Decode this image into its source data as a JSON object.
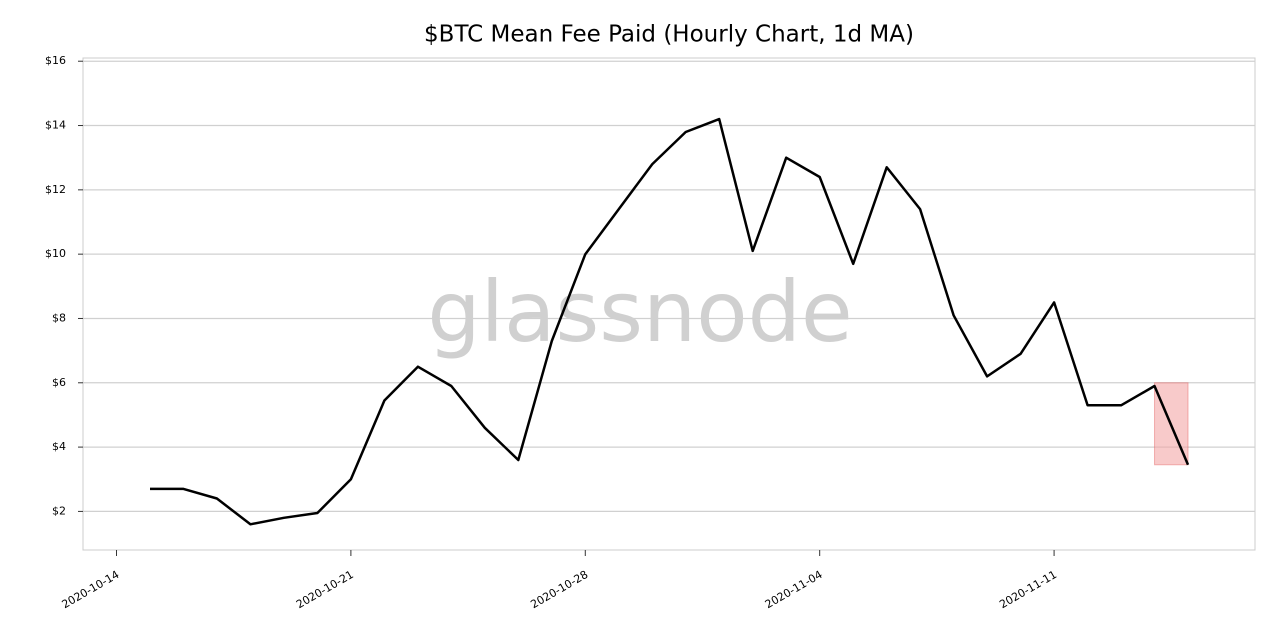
{
  "chart_data": {
    "type": "line",
    "title": "$BTC Mean Fee Paid (Hourly Chart, 1d MA)",
    "watermark": "glassnode",
    "x": [
      "2020-10-15",
      "2020-10-16",
      "2020-10-17",
      "2020-10-18",
      "2020-10-19",
      "2020-10-20",
      "2020-10-21",
      "2020-10-22",
      "2020-10-23",
      "2020-10-24",
      "2020-10-25",
      "2020-10-26",
      "2020-10-27",
      "2020-10-28",
      "2020-10-29",
      "2020-10-30",
      "2020-10-31",
      "2020-11-01",
      "2020-11-02",
      "2020-11-03",
      "2020-11-04",
      "2020-11-05",
      "2020-11-06",
      "2020-11-07",
      "2020-11-08",
      "2020-11-09",
      "2020-11-10",
      "2020-11-11",
      "2020-11-12",
      "2020-11-13",
      "2020-11-14",
      "2020-11-15"
    ],
    "series": [
      {
        "color": "#000000",
        "values": [
          2.7,
          2.7,
          2.4,
          1.6,
          1.8,
          1.95,
          3.0,
          5.45,
          6.5,
          5.9,
          4.6,
          3.6,
          7.3,
          10.0,
          11.4,
          12.8,
          13.8,
          14.2,
          10.1,
          13.0,
          12.4,
          9.7,
          12.7,
          11.4,
          8.1,
          6.2,
          6.9,
          8.5,
          5.3,
          5.3,
          5.9,
          3.45
        ]
      }
    ],
    "highlight": {
      "x": [
        "2020-11-14",
        "2020-11-15"
      ],
      "y": [
        3.45,
        6.0
      ],
      "color": "#f4a6a6",
      "edge": "#e05050"
    },
    "xlim": [
      "2020-10-13",
      "2020-11-17"
    ],
    "xticks": [
      "2020-10-14",
      "2020-10-21",
      "2020-10-28",
      "2020-11-04",
      "2020-11-11"
    ],
    "ylim": [
      0.8,
      16.1
    ],
    "yticks": [
      {
        "value": 2,
        "label": "$2"
      },
      {
        "value": 4,
        "label": "$4"
      },
      {
        "value": 6,
        "label": "$6"
      },
      {
        "value": 8,
        "label": "$8"
      },
      {
        "value": 10,
        "label": "$10"
      },
      {
        "value": 12,
        "label": "$12"
      },
      {
        "value": 14,
        "label": "$14"
      },
      {
        "value": 16,
        "label": "$16"
      }
    ],
    "grid": true
  }
}
